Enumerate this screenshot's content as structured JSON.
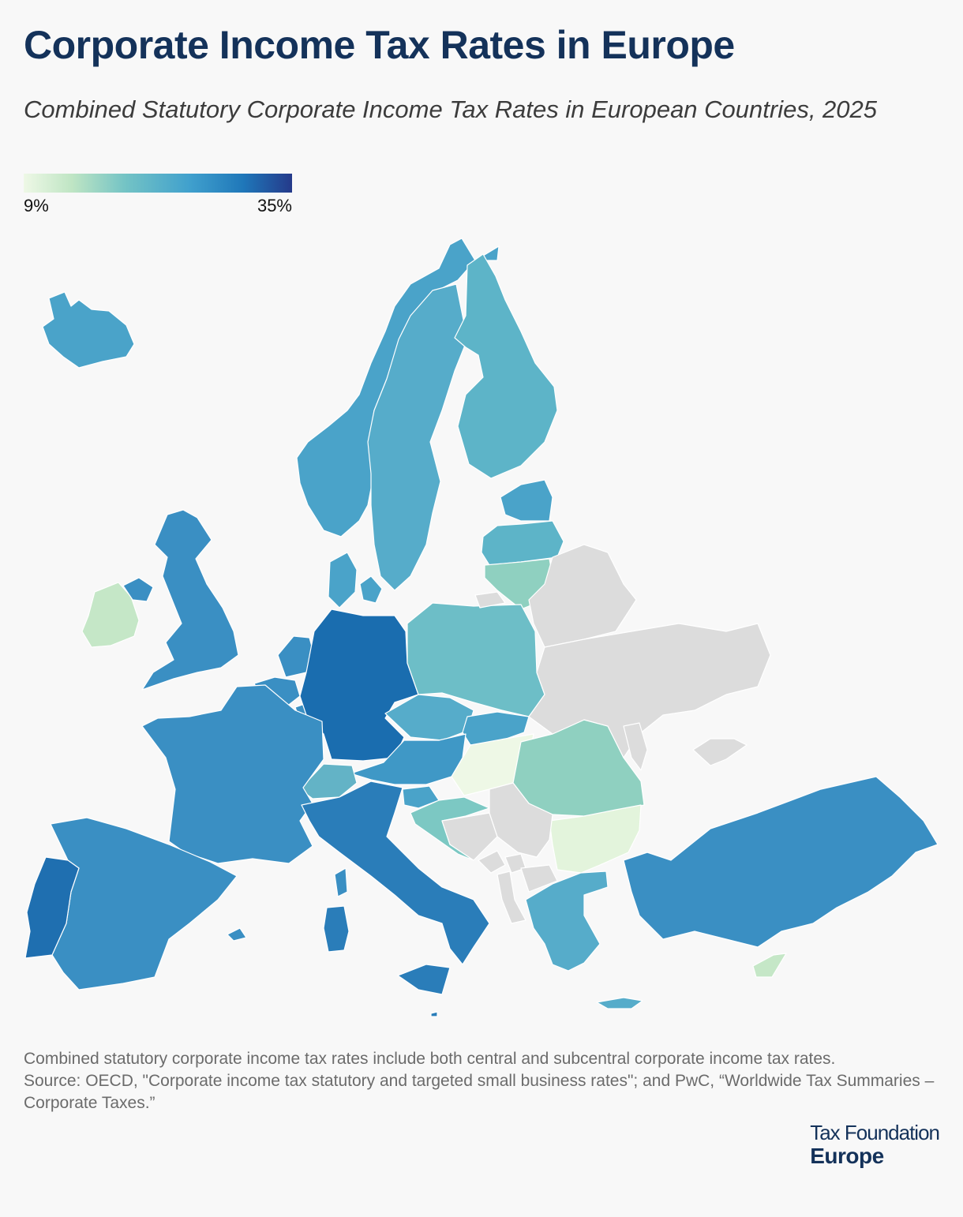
{
  "header": {
    "title": "Corporate Income Tax Rates in Europe",
    "subtitle": "Combined Statutory Corporate Income Tax Rates in European Countries, 2025"
  },
  "legend": {
    "min_label": "9%",
    "max_label": "35%",
    "colors": [
      "#eef8e6",
      "#bfe5c4",
      "#73c3c5",
      "#40a0cd",
      "#1f77b9",
      "#253a8a"
    ]
  },
  "map": {
    "no_data_color": "#dcdcdc",
    "countries": [
      {
        "id": "iceland",
        "color": "#4aa3c9"
      },
      {
        "id": "norway",
        "color": "#4aa3c9"
      },
      {
        "id": "sweden",
        "color": "#56acca"
      },
      {
        "id": "finland",
        "color": "#5db4c8"
      },
      {
        "id": "estonia",
        "color": "#4aa3c9"
      },
      {
        "id": "latvia",
        "color": "#5db4c8"
      },
      {
        "id": "lithuania",
        "color": "#8fd0c0"
      },
      {
        "id": "denmark",
        "color": "#4aa3c9"
      },
      {
        "id": "ireland",
        "color": "#c5e7c7"
      },
      {
        "id": "united-kingdom",
        "color": "#3a8fc3"
      },
      {
        "id": "northern-ireland",
        "color": "#3a8fc3"
      },
      {
        "id": "netherlands",
        "color": "#3a8fc3"
      },
      {
        "id": "belgium",
        "color": "#3a8fc3"
      },
      {
        "id": "luxembourg",
        "color": "#3a8fc3"
      },
      {
        "id": "germany",
        "color": "#1a6daf"
      },
      {
        "id": "poland",
        "color": "#6dbec7"
      },
      {
        "id": "czechia",
        "color": "#56acca"
      },
      {
        "id": "slovakia",
        "color": "#4aa3c9"
      },
      {
        "id": "austria",
        "color": "#3f98c6"
      },
      {
        "id": "switzerland",
        "color": "#63b3c6"
      },
      {
        "id": "france",
        "color": "#3a8fc3"
      },
      {
        "id": "spain",
        "color": "#3a8fc3"
      },
      {
        "id": "portugal",
        "color": "#1f6fb0"
      },
      {
        "id": "italy",
        "color": "#2a7db9"
      },
      {
        "id": "sardinia",
        "color": "#2a7db9"
      },
      {
        "id": "corsica",
        "color": "#3a8fc3"
      },
      {
        "id": "sicily",
        "color": "#2a7db9"
      },
      {
        "id": "slovenia",
        "color": "#4aa3c9"
      },
      {
        "id": "croatia",
        "color": "#7cc8c3"
      },
      {
        "id": "hungary",
        "color": "#eef8e6"
      },
      {
        "id": "romania",
        "color": "#8fd0c0"
      },
      {
        "id": "bulgaria",
        "color": "#e3f4dc"
      },
      {
        "id": "greece",
        "color": "#56acca"
      },
      {
        "id": "crete",
        "color": "#56acca"
      },
      {
        "id": "turkey",
        "color": "#3a8fc3"
      },
      {
        "id": "cyprus",
        "color": "#c5e7c7"
      },
      {
        "id": "balearic-islands",
        "color": "#3a8fc3"
      },
      {
        "id": "malta",
        "color": "#2a7db9"
      }
    ],
    "no_data": [
      "belarus",
      "ukraine",
      "moldova",
      "crimea",
      "bosnia-herzegovina",
      "serbia",
      "montenegro",
      "albania",
      "north-macedonia",
      "kosovo",
      "kaliningrad"
    ]
  },
  "footnote": {
    "line1": "Combined statutory corporate income tax rates include both central and subcentral corporate income tax rates.",
    "line2": "Source: OECD, \"Corporate income tax statutory and targeted small business rates\"; and PwC, “Worldwide Tax Summaries – Corporate Taxes.”"
  },
  "logo": {
    "line1": "Tax Foundation",
    "line2": "Europe"
  }
}
